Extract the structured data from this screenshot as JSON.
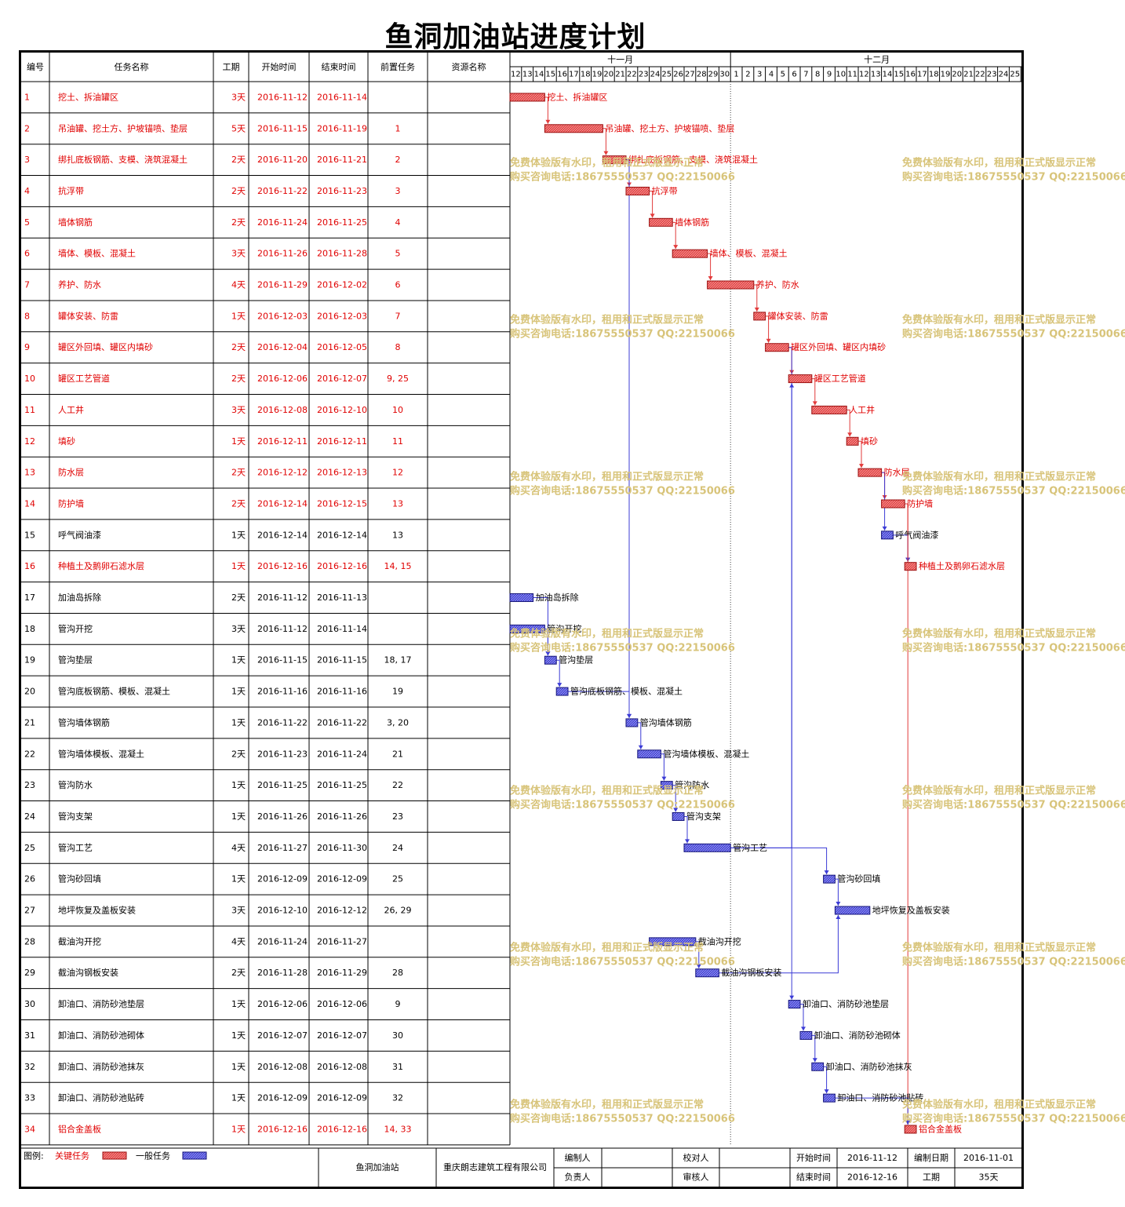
{
  "title": "鱼洞加油站进度计划",
  "headers": {
    "id": "编号",
    "name": "任务名称",
    "duration": "工期",
    "start": "开始时间",
    "end": "结束时间",
    "pred": "前置任务",
    "resource": "资源名称"
  },
  "timescale": {
    "months": [
      "十一月",
      "十二月"
    ],
    "days": [
      "12",
      "13",
      "14",
      "15",
      "16",
      "17",
      "18",
      "19",
      "20",
      "21",
      "22",
      "23",
      "24",
      "25",
      "26",
      "27",
      "28",
      "29",
      "30",
      "1",
      "2",
      "3",
      "4",
      "5",
      "6",
      "7",
      "8",
      "9",
      "10",
      "11",
      "12",
      "13",
      "14",
      "15",
      "16",
      "17",
      "18",
      "19",
      "20",
      "21",
      "22",
      "23",
      "24",
      "25"
    ]
  },
  "chart_data": {
    "type": "gantt",
    "title": "鱼洞加油站进度计划",
    "project_start": "2016-11-12",
    "tasks": [
      {
        "id": "1",
        "name": "挖土、拆油罐区",
        "duration": "3天",
        "start": "2016-11-12",
        "end": "2016-11-14",
        "pred": "",
        "critical": true
      },
      {
        "id": "2",
        "name": "吊油罐、挖土方、护坡锚喷、垫层",
        "duration": "5天",
        "start": "2016-11-15",
        "end": "2016-11-19",
        "pred": "1",
        "critical": true
      },
      {
        "id": "3",
        "name": "绑扎底板钢筋、支模、浇筑混凝土",
        "duration": "2天",
        "start": "2016-11-20",
        "end": "2016-11-21",
        "pred": "2",
        "critical": true
      },
      {
        "id": "4",
        "name": "抗浮带",
        "duration": "2天",
        "start": "2016-11-22",
        "end": "2016-11-23",
        "pred": "3",
        "critical": true
      },
      {
        "id": "5",
        "name": "墙体钢筋",
        "duration": "2天",
        "start": "2016-11-24",
        "end": "2016-11-25",
        "pred": "4",
        "critical": true
      },
      {
        "id": "6",
        "name": "墙体、模板、混凝土",
        "duration": "3天",
        "start": "2016-11-26",
        "end": "2016-11-28",
        "pred": "5",
        "critical": true
      },
      {
        "id": "7",
        "name": "养护、防水",
        "duration": "4天",
        "start": "2016-11-29",
        "end": "2016-12-02",
        "pred": "6",
        "critical": true
      },
      {
        "id": "8",
        "name": "罐体安装、防雷",
        "duration": "1天",
        "start": "2016-12-03",
        "end": "2016-12-03",
        "pred": "7",
        "critical": true
      },
      {
        "id": "9",
        "name": "罐区外回填、罐区内填砂",
        "duration": "2天",
        "start": "2016-12-04",
        "end": "2016-12-05",
        "pred": "8",
        "critical": true
      },
      {
        "id": "10",
        "name": "罐区工艺管道",
        "duration": "2天",
        "start": "2016-12-06",
        "end": "2016-12-07",
        "pred": "9, 25",
        "critical": true
      },
      {
        "id": "11",
        "name": "人工井",
        "duration": "3天",
        "start": "2016-12-08",
        "end": "2016-12-10",
        "pred": "10",
        "critical": true
      },
      {
        "id": "12",
        "name": "填砂",
        "duration": "1天",
        "start": "2016-12-11",
        "end": "2016-12-11",
        "pred": "11",
        "critical": true
      },
      {
        "id": "13",
        "name": "防水层",
        "duration": "2天",
        "start": "2016-12-12",
        "end": "2016-12-13",
        "pred": "12",
        "critical": true
      },
      {
        "id": "14",
        "name": "防护墙",
        "duration": "2天",
        "start": "2016-12-14",
        "end": "2016-12-15",
        "pred": "13",
        "critical": true
      },
      {
        "id": "15",
        "name": "呼气阀油漆",
        "duration": "1天",
        "start": "2016-12-14",
        "end": "2016-12-14",
        "pred": "13",
        "critical": false
      },
      {
        "id": "16",
        "name": "种植土及鹅卵石滤水层",
        "duration": "1天",
        "start": "2016-12-16",
        "end": "2016-12-16",
        "pred": "14, 15",
        "critical": true
      },
      {
        "id": "17",
        "name": "加油岛拆除",
        "duration": "2天",
        "start": "2016-11-12",
        "end": "2016-11-13",
        "pred": "",
        "critical": false
      },
      {
        "id": "18",
        "name": "管沟开挖",
        "duration": "3天",
        "start": "2016-11-12",
        "end": "2016-11-14",
        "pred": "",
        "critical": false
      },
      {
        "id": "19",
        "name": "管沟垫层",
        "duration": "1天",
        "start": "2016-11-15",
        "end": "2016-11-15",
        "pred": "18, 17",
        "critical": false
      },
      {
        "id": "20",
        "name": "管沟底板钢筋、模板、混凝土",
        "duration": "1天",
        "start": "2016-11-16",
        "end": "2016-11-16",
        "pred": "19",
        "critical": false
      },
      {
        "id": "21",
        "name": "管沟墙体钢筋",
        "duration": "1天",
        "start": "2016-11-22",
        "end": "2016-11-22",
        "pred": "3, 20",
        "critical": false
      },
      {
        "id": "22",
        "name": "管沟墙体模板、混凝土",
        "duration": "2天",
        "start": "2016-11-23",
        "end": "2016-11-24",
        "pred": "21",
        "critical": false
      },
      {
        "id": "23",
        "name": "管沟防水",
        "duration": "1天",
        "start": "2016-11-25",
        "end": "2016-11-25",
        "pred": "22",
        "critical": false
      },
      {
        "id": "24",
        "name": "管沟支架",
        "duration": "1天",
        "start": "2016-11-26",
        "end": "2016-11-26",
        "pred": "23",
        "critical": false
      },
      {
        "id": "25",
        "name": "管沟工艺",
        "duration": "4天",
        "start": "2016-11-27",
        "end": "2016-11-30",
        "pred": "24",
        "critical": false
      },
      {
        "id": "26",
        "name": "管沟砂回填",
        "duration": "1天",
        "start": "2016-12-09",
        "end": "2016-12-09",
        "pred": "25",
        "critical": false
      },
      {
        "id": "27",
        "name": "地坪恢复及盖板安装",
        "duration": "3天",
        "start": "2016-12-10",
        "end": "2016-12-12",
        "pred": "26, 29",
        "critical": false
      },
      {
        "id": "28",
        "name": "截油沟开挖",
        "duration": "4天",
        "start": "2016-11-24",
        "end": "2016-11-27",
        "pred": "",
        "critical": false
      },
      {
        "id": "29",
        "name": "截油沟钢板安装",
        "duration": "2天",
        "start": "2016-11-28",
        "end": "2016-11-29",
        "pred": "28",
        "critical": false
      },
      {
        "id": "30",
        "name": "卸油口、消防砂池垫层",
        "duration": "1天",
        "start": "2016-12-06",
        "end": "2016-12-06",
        "pred": "9",
        "critical": false
      },
      {
        "id": "31",
        "name": "卸油口、消防砂池砌体",
        "duration": "1天",
        "start": "2016-12-07",
        "end": "2016-12-07",
        "pred": "30",
        "critical": false
      },
      {
        "id": "32",
        "name": "卸油口、消防砂池抹灰",
        "duration": "1天",
        "start": "2016-12-08",
        "end": "2016-12-08",
        "pred": "31",
        "critical": false
      },
      {
        "id": "33",
        "name": "卸油口、消防砂池贴砖",
        "duration": "1天",
        "start": "2016-12-09",
        "end": "2016-12-09",
        "pred": "32",
        "critical": false
      },
      {
        "id": "34",
        "name": "铝合金盖板",
        "duration": "1天",
        "start": "2016-12-16",
        "end": "2016-12-16",
        "pred": "14, 33",
        "critical": true
      }
    ],
    "colors": {
      "critical": "#e23a3a",
      "normal": "#3b3bd6",
      "critical_text": "#e00000",
      "normal_text": "#000000"
    }
  },
  "watermark": {
    "line1": "免费体验版有水印，租用和正式版显示正常",
    "line2": "购买咨询电话:18675550537 QQ:22150066",
    "color": "#d8c47a"
  },
  "footer": {
    "legend_label": "图例:",
    "critical_label": "关键任务",
    "normal_label": "一般任务",
    "project": "鱼洞加油站",
    "company": "重庆朗志建筑工程有限公司",
    "prepared_by": "编制人",
    "responsible": "负责人",
    "checked_by": "校对人",
    "reviewed_by": "审核人",
    "start_label": "开始时间",
    "start_value": "2016-11-12",
    "end_label": "结束时间",
    "end_value": "2016-12-16",
    "date_label": "编制日期",
    "date_value": "2016-11-01",
    "duration_label": "工期",
    "duration_value": "35天"
  }
}
